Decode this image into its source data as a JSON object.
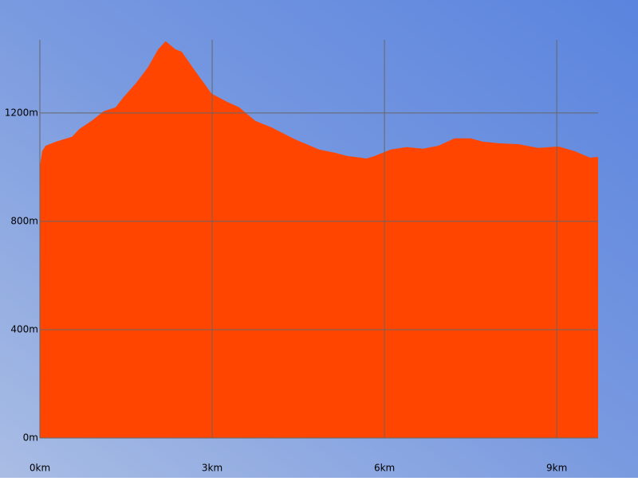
{
  "chart_data": {
    "type": "area",
    "color": "#ff4500",
    "grid": true,
    "x": [
      0,
      0.04,
      0.1,
      0.28,
      0.56,
      0.69,
      0.9,
      1.11,
      1.32,
      1.46,
      1.67,
      1.88,
      2.06,
      2.19,
      2.36,
      2.47,
      2.71,
      2.99,
      3.26,
      3.47,
      3.75,
      4.03,
      4.44,
      4.86,
      5.14,
      5.35,
      5.69,
      5.83,
      6.11,
      6.39,
      6.67,
      6.94,
      7.22,
      7.5,
      7.71,
      7.99,
      8.33,
      8.68,
      9.03,
      9.31,
      9.58,
      9.72
    ],
    "values": [
      1000,
      1059,
      1079,
      1094,
      1112,
      1141,
      1171,
      1206,
      1221,
      1259,
      1309,
      1368,
      1435,
      1465,
      1435,
      1426,
      1353,
      1271,
      1241,
      1221,
      1171,
      1147,
      1103,
      1065,
      1053,
      1041,
      1032,
      1041,
      1065,
      1074,
      1068,
      1079,
      1106,
      1106,
      1094,
      1088,
      1085,
      1071,
      1076,
      1059,
      1035,
      1038
    ],
    "xlim": [
      0,
      9.72
    ],
    "ylim": [
      0,
      1470
    ],
    "xticks": [
      {
        "value": 0,
        "label": "0km"
      },
      {
        "value": 3,
        "label": "3km"
      },
      {
        "value": 6,
        "label": "6km"
      },
      {
        "value": 9,
        "label": "9km"
      }
    ],
    "yticks": [
      {
        "value": 0,
        "label": "0m"
      },
      {
        "value": 400,
        "label": "400m"
      },
      {
        "value": 800,
        "label": "800m"
      },
      {
        "value": 1200,
        "label": "1200m"
      }
    ]
  }
}
